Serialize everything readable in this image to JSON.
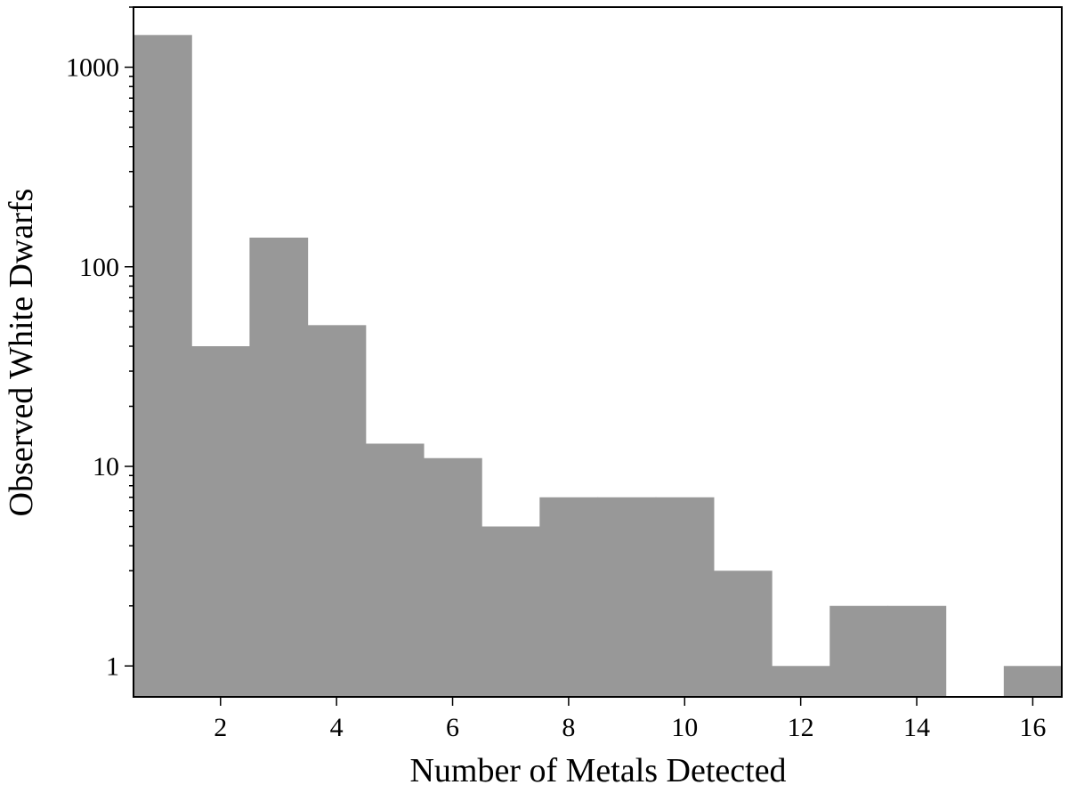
{
  "chart_data": {
    "type": "bar",
    "subtype": "histogram",
    "xlabel": "Number of Metals Detected",
    "ylabel": "Observed White Dwarfs",
    "yscale": "log",
    "xlim": [
      0.5,
      16.5
    ],
    "ylim": [
      0.7,
      2000
    ],
    "xticks": [
      2,
      4,
      6,
      8,
      10,
      12,
      14,
      16
    ],
    "xtick_labels": [
      "2",
      "4",
      "6",
      "8",
      "10",
      "12",
      "14",
      "16"
    ],
    "yticks": [
      1,
      10,
      100,
      1000
    ],
    "ytick_labels": [
      "1",
      "10",
      "100",
      "1000"
    ],
    "grid": false,
    "bar_color": "#989898",
    "bins": [
      1,
      2,
      3,
      4,
      5,
      6,
      7,
      8,
      9,
      10,
      11,
      12,
      13,
      14,
      15,
      16
    ],
    "values": [
      1450,
      40,
      140,
      51,
      13,
      11,
      5,
      7,
      7,
      7,
      3,
      1,
      2,
      2,
      0,
      1
    ]
  }
}
